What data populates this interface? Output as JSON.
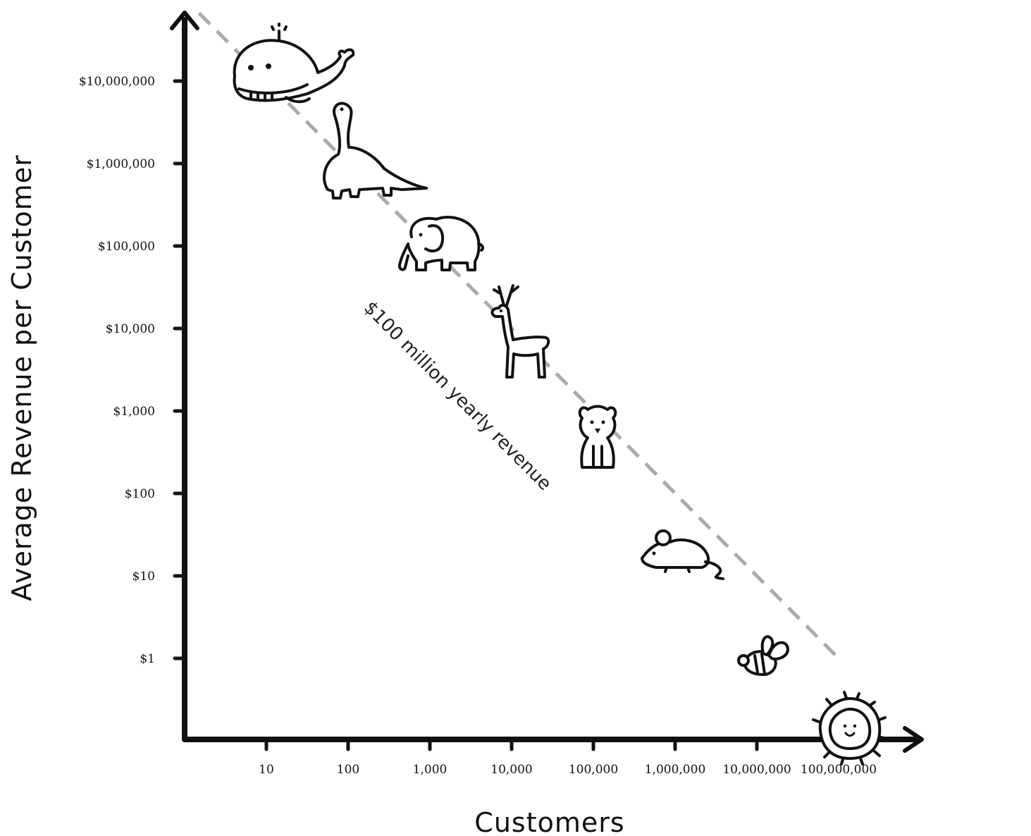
{
  "chart_data": {
    "type": "scatter",
    "xlabel": "Customers",
    "ylabel": "Average Revenue per Customer",
    "x_scale": "log",
    "y_scale": "log",
    "x_ticks": [
      {
        "value": 10,
        "label": "10"
      },
      {
        "value": 100,
        "label": "100"
      },
      {
        "value": 1000,
        "label": "1,000"
      },
      {
        "value": 10000,
        "label": "10,000"
      },
      {
        "value": 100000,
        "label": "100,000"
      },
      {
        "value": 1000000,
        "label": "1,000,000"
      },
      {
        "value": 10000000,
        "label": "10,000,000"
      },
      {
        "value": 100000000,
        "label": "100,000,000"
      }
    ],
    "y_ticks": [
      {
        "value": 1,
        "label": "$1"
      },
      {
        "value": 10,
        "label": "$10"
      },
      {
        "value": 100,
        "label": "$100"
      },
      {
        "value": 1000,
        "label": "$1,000"
      },
      {
        "value": 10000,
        "label": "$10,000"
      },
      {
        "value": 100000,
        "label": "$100,000"
      },
      {
        "value": 1000000,
        "label": "$1,000,000"
      },
      {
        "value": 10000000,
        "label": "$10,000,000"
      }
    ],
    "reference_line": {
      "label": "$100 million yearly revenue",
      "style": "dashed",
      "color": "#aaaaaa",
      "x": [
        1.5,
        100000000
      ],
      "y": [
        66666667,
        1
      ]
    },
    "points": [
      {
        "icon": "whale-icon",
        "x": 10,
        "y": 10000000
      },
      {
        "icon": "dinosaur-icon",
        "x": 100,
        "y": 1000000
      },
      {
        "icon": "elephant-icon",
        "x": 1000,
        "y": 100000
      },
      {
        "icon": "deer-icon",
        "x": 10000,
        "y": 10000
      },
      {
        "icon": "bear-icon",
        "x": 100000,
        "y": 1000
      },
      {
        "icon": "mouse-icon",
        "x": 1000000,
        "y": 100
      },
      {
        "icon": "bee-icon",
        "x": 10000000,
        "y": 10
      },
      {
        "icon": "microbe-icon",
        "x": 100000000,
        "y": 1
      }
    ],
    "grid": false,
    "colors": {
      "axis": "#111111",
      "reference_line": "#aaaaaa"
    }
  }
}
